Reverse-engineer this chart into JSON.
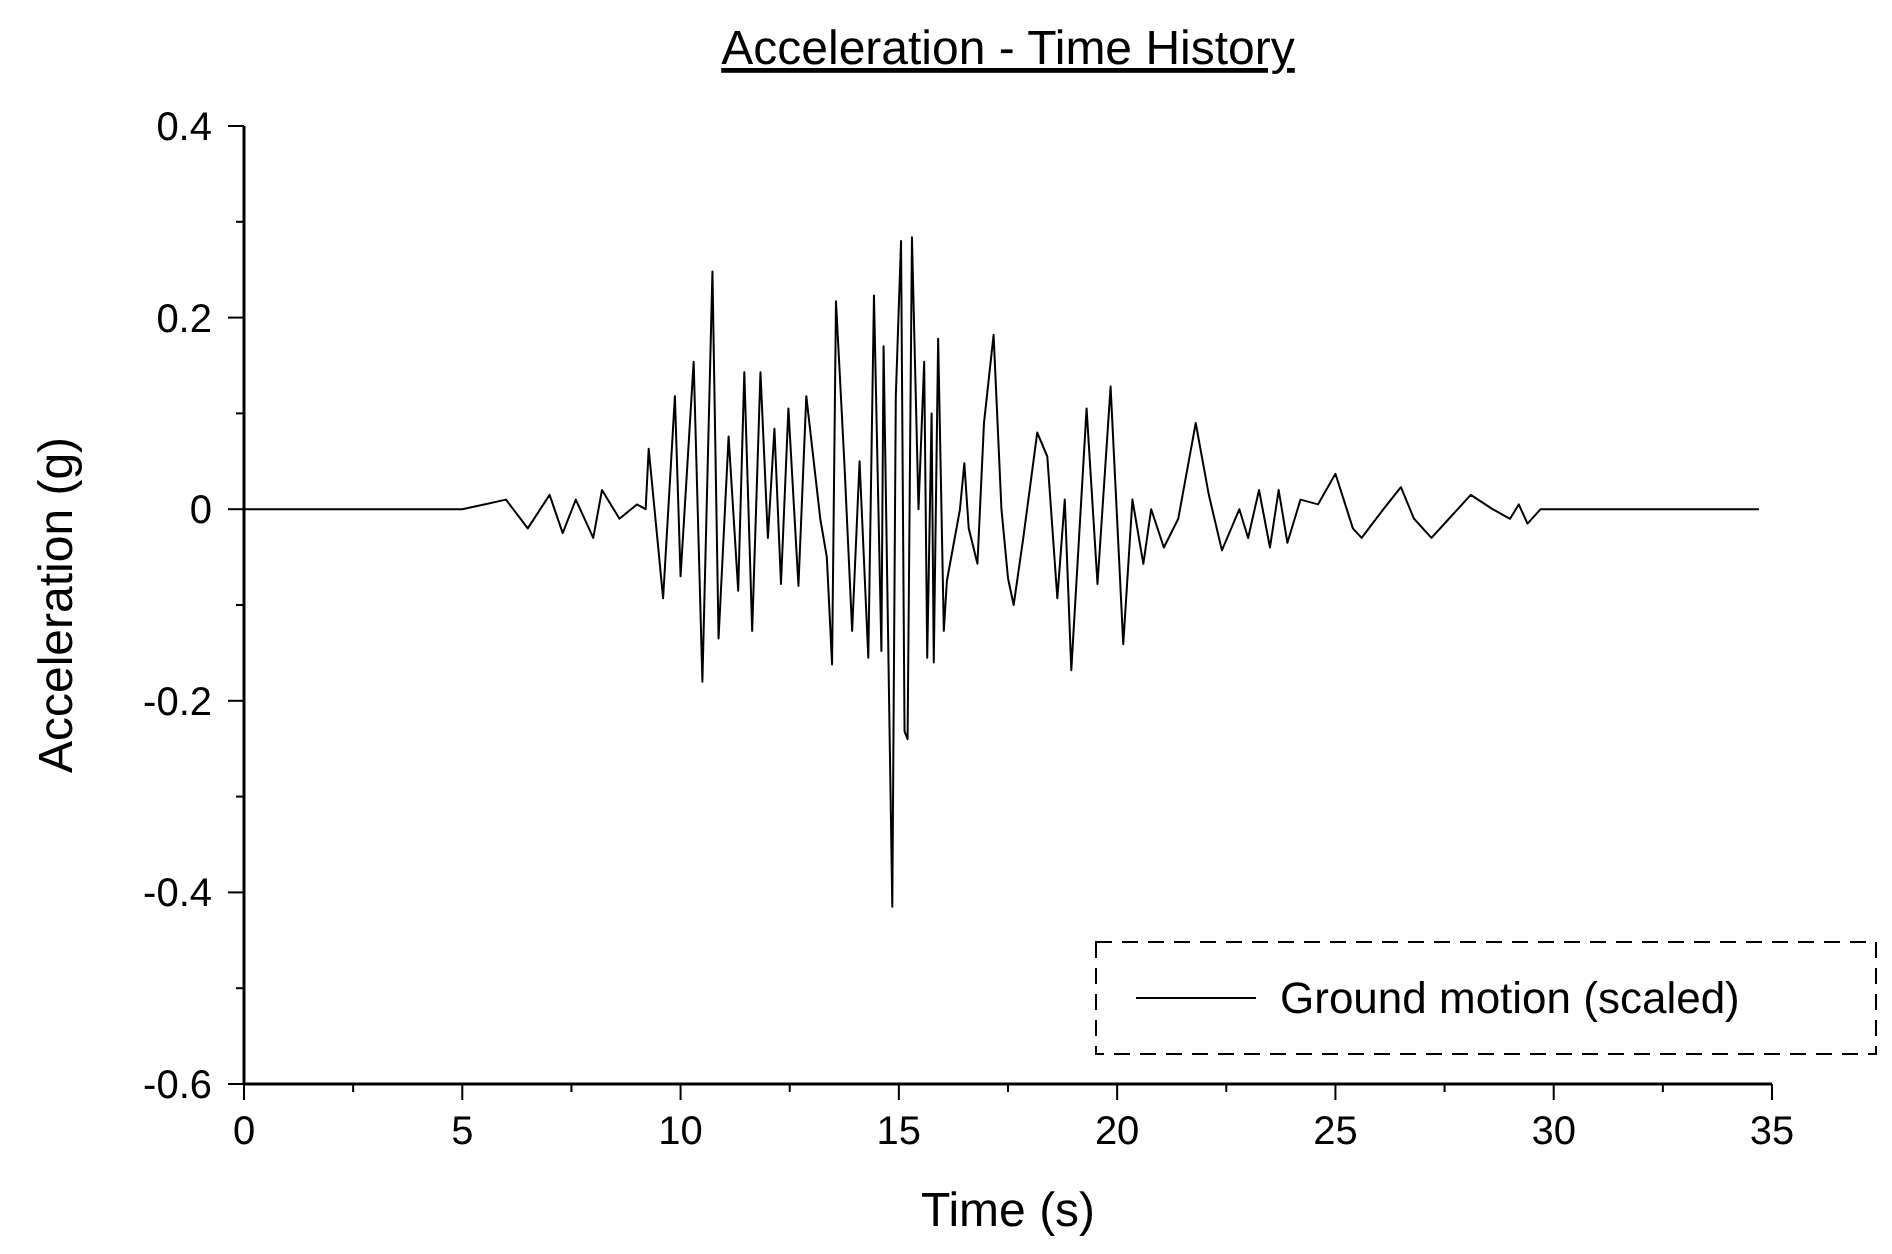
{
  "chart_data": {
    "type": "line",
    "title": "Acceleration - Time History",
    "xlabel": "Time (s)",
    "ylabel": "Acceleration (g)",
    "xlim": [
      0,
      35
    ],
    "xticks": [
      0,
      5,
      10,
      15,
      20,
      25,
      30,
      35
    ],
    "ylim": [
      -0.6,
      0.4
    ],
    "yticks": [
      -0.6,
      -0.4,
      -0.2,
      0,
      0.2,
      0.4
    ],
    "grid": false,
    "legend": "bottom right",
    "marker": "none",
    "line_style": "solid",
    "series": [
      {
        "name": "Ground motion (scaled)",
        "color": "#000000",
        "x": [
          0,
          5.0,
          5.5,
          6.0,
          6.5,
          7.0,
          7.3,
          7.6,
          8.0,
          8.2,
          8.6,
          9.0,
          9.2,
          9.27,
          9.6,
          9.87,
          10.0,
          10.3,
          10.5,
          10.73,
          10.87,
          11.1,
          11.32,
          11.46,
          11.64,
          11.83,
          12.0,
          12.15,
          12.3,
          12.47,
          12.7,
          12.88,
          13.2,
          13.35,
          13.47,
          13.56,
          13.75,
          13.93,
          14.1,
          14.3,
          14.43,
          14.6,
          14.65,
          14.85,
          14.93,
          15.05,
          15.13,
          15.2,
          15.3,
          15.45,
          15.58,
          15.65,
          15.75,
          15.8,
          15.9,
          16.03,
          16.1,
          16.4,
          16.5,
          16.6,
          16.8,
          16.95,
          17.17,
          17.35,
          17.5,
          17.63,
          17.85,
          18.17,
          18.4,
          18.63,
          18.8,
          18.95,
          19.3,
          19.55,
          19.85,
          20.14,
          20.35,
          20.6,
          20.78,
          21.07,
          21.4,
          21.6,
          21.8,
          22.1,
          22.4,
          22.8,
          23.0,
          23.25,
          23.5,
          23.7,
          23.9,
          24.2,
          24.6,
          25.0,
          25.4,
          25.6,
          26.1,
          26.5,
          26.8,
          27.2,
          27.6,
          28.1,
          28.6,
          29.0,
          29.2,
          29.4,
          29.7,
          34.7
        ],
        "values": [
          0,
          0,
          0.005,
          0.01,
          -0.02,
          0.015,
          -0.025,
          0.01,
          -0.03,
          0.02,
          -0.01,
          0.005,
          0,
          0.063,
          -0.093,
          0.118,
          -0.07,
          0.154,
          -0.18,
          0.248,
          -0.135,
          0.076,
          -0.085,
          0.143,
          -0.127,
          0.143,
          -0.03,
          0.084,
          -0.078,
          0.105,
          -0.08,
          0.118,
          -0.01,
          -0.05,
          -0.162,
          0.217,
          0.05,
          -0.127,
          0.05,
          -0.155,
          0.223,
          -0.148,
          0.17,
          -0.415,
          0.118,
          0.28,
          -0.232,
          -0.24,
          0.284,
          0,
          0.154,
          -0.155,
          0.1,
          -0.16,
          0.178,
          -0.127,
          -0.075,
          0,
          0.048,
          -0.02,
          -0.057,
          0.09,
          0.182,
          0,
          -0.072,
          -0.1,
          -0.03,
          0.08,
          0.055,
          -0.093,
          0.01,
          -0.168,
          0.105,
          -0.078,
          0.128,
          -0.141,
          0.01,
          -0.057,
          0,
          -0.04,
          -0.01,
          0.04,
          0.09,
          0.015,
          -0.043,
          0,
          -0.03,
          0.02,
          -0.04,
          0.02,
          -0.035,
          0.01,
          0.005,
          0.037,
          -0.02,
          -0.03,
          0,
          0.023,
          -0.01,
          -0.03,
          -0.01,
          0.015,
          0,
          -0.01,
          0.005,
          -0.015,
          0,
          0
        ]
      }
    ]
  }
}
